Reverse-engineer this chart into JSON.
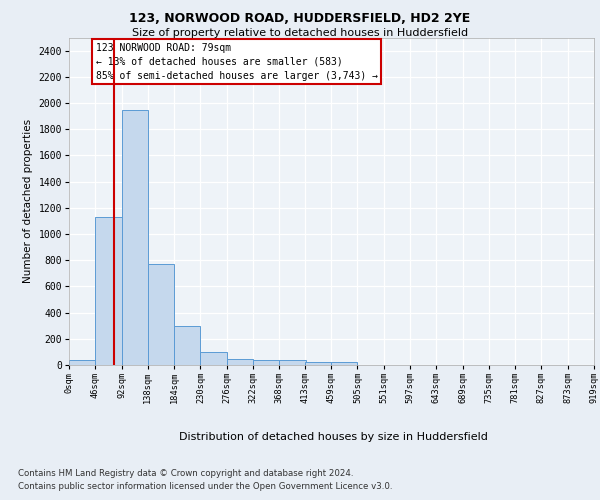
{
  "title1": "123, NORWOOD ROAD, HUDDERSFIELD, HD2 2YE",
  "title2": "Size of property relative to detached houses in Huddersfield",
  "xlabel": "Distribution of detached houses by size in Huddersfield",
  "ylabel": "Number of detached properties",
  "property_size": 79,
  "property_label": "123 NORWOOD ROAD: 79sqm",
  "annotation_line1": "← 13% of detached houses are smaller (583)",
  "annotation_line2": "85% of semi-detached houses are larger (3,743) →",
  "bar_color": "#c5d8ed",
  "bar_edge_color": "#5b9bd5",
  "vline_color": "#cc0000",
  "annotation_box_color": "#cc0000",
  "bin_edges": [
    0,
    46,
    92,
    138,
    184,
    230,
    276,
    322,
    368,
    413,
    459,
    505,
    551,
    597,
    643,
    689,
    735,
    781,
    827,
    873,
    919
  ],
  "bin_counts": [
    35,
    1130,
    1950,
    770,
    300,
    100,
    45,
    38,
    38,
    20,
    20,
    0,
    0,
    0,
    0,
    0,
    0,
    0,
    0,
    0
  ],
  "ylim": [
    0,
    2500
  ],
  "yticks": [
    0,
    200,
    400,
    600,
    800,
    1000,
    1200,
    1400,
    1600,
    1800,
    2000,
    2200,
    2400
  ],
  "footer1": "Contains HM Land Registry data © Crown copyright and database right 2024.",
  "footer2": "Contains public sector information licensed under the Open Government Licence v3.0.",
  "bg_color": "#e8eef5",
  "plot_bg_color": "#eef3f8"
}
